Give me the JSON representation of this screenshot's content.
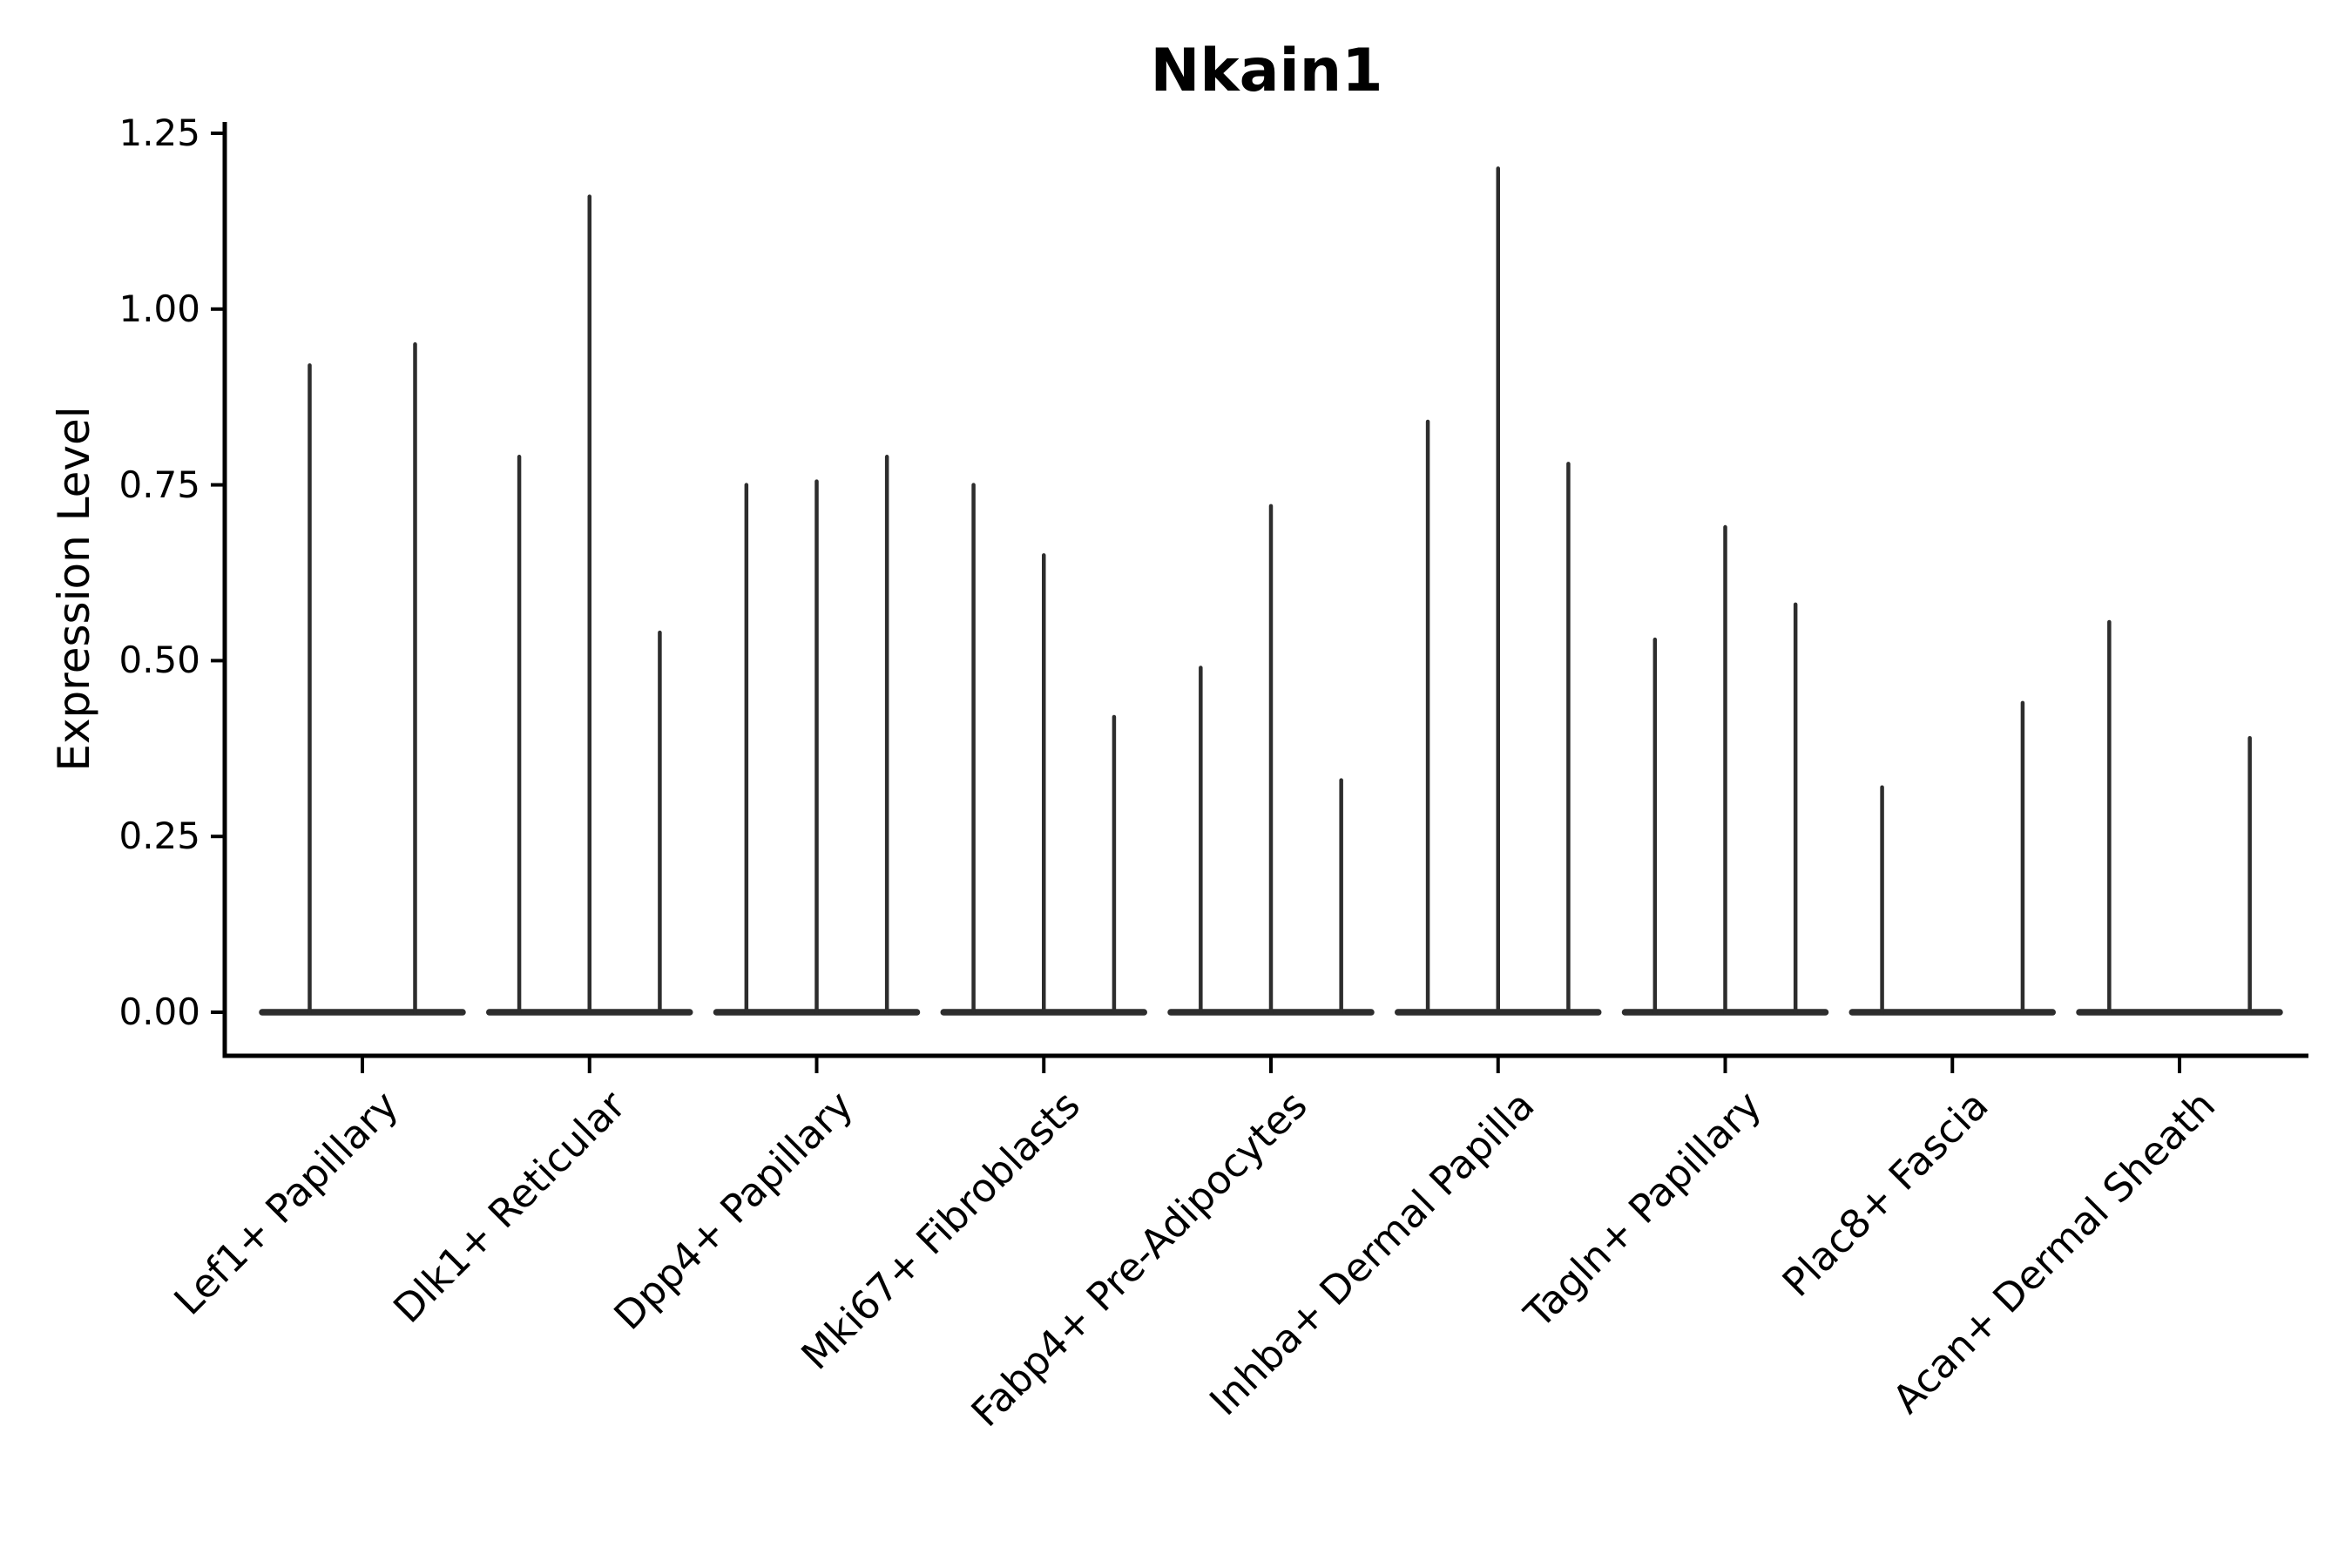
{
  "figure": {
    "background": "#ffffff"
  },
  "colors": {
    "violin": "#2d2d2d",
    "axis": "#000000",
    "text": "#000000"
  },
  "chart_data": {
    "type": "violin",
    "title": "Nkain1",
    "xlabel": "",
    "ylabel": "Expression Level",
    "ylim": [
      0,
      1.25
    ],
    "grid": false,
    "legend": "none",
    "yticks": [
      "0.00",
      "0.25",
      "0.50",
      "0.75",
      "1.00",
      "1.25"
    ],
    "categories": [
      "Lef1+ Papillary",
      "Dlk1+ Reticular",
      "Dpp4+ Papillary",
      "Mki67+ Fibroblasts",
      "Fabp4+ Pre-Adipocytes",
      "Inhba+ Dermal Papilla",
      "Tagln+ Papillary",
      "Plac8+ Fascia",
      "Acan+ Dermal Sheath"
    ],
    "groups": [
      {
        "label": "Lef1+ Papillary",
        "slots": 2,
        "violins": [
          {
            "slot": 0,
            "max": 0.92
          },
          {
            "slot": 1,
            "max": 0.95
          }
        ]
      },
      {
        "label": "Dlk1+ Reticular",
        "slots": 3,
        "violins": [
          {
            "slot": 0,
            "max": 0.79
          },
          {
            "slot": 1,
            "max": 1.16
          },
          {
            "slot": 2,
            "max": 0.54
          }
        ]
      },
      {
        "label": "Dpp4+ Papillary",
        "slots": 3,
        "violins": [
          {
            "slot": 0,
            "max": 0.75
          },
          {
            "slot": 1,
            "max": 0.755
          },
          {
            "slot": 2,
            "max": 0.79
          }
        ]
      },
      {
        "label": "Mki67+ Fibroblasts",
        "slots": 3,
        "violins": [
          {
            "slot": 0,
            "max": 0.75
          },
          {
            "slot": 1,
            "max": 0.65
          },
          {
            "slot": 2,
            "max": 0.42
          }
        ]
      },
      {
        "label": "Fabp4+ Pre-Adipocytes",
        "slots": 3,
        "violins": [
          {
            "slot": 0,
            "max": 0.49
          },
          {
            "slot": 1,
            "max": 0.72
          },
          {
            "slot": 2,
            "max": 0.33
          }
        ]
      },
      {
        "label": "Inhba+ Dermal Papilla",
        "slots": 3,
        "violins": [
          {
            "slot": 0,
            "max": 0.84
          },
          {
            "slot": 1,
            "max": 1.2
          },
          {
            "slot": 2,
            "max": 0.78
          }
        ]
      },
      {
        "label": "Tagln+ Papillary",
        "slots": 3,
        "violins": [
          {
            "slot": 0,
            "max": 0.53
          },
          {
            "slot": 1,
            "max": 0.69
          },
          {
            "slot": 2,
            "max": 0.58
          }
        ]
      },
      {
        "label": "Plac8+ Fascia",
        "slots": 3,
        "violins": [
          {
            "slot": 0,
            "max": 0.32
          },
          {
            "slot": 2,
            "max": 0.44
          }
        ]
      },
      {
        "label": "Acan+ Dermal Sheath",
        "slots": 3,
        "violins": [
          {
            "slot": 0,
            "max": 0.555
          },
          {
            "slot": 2,
            "max": 0.39
          }
        ]
      }
    ]
  }
}
